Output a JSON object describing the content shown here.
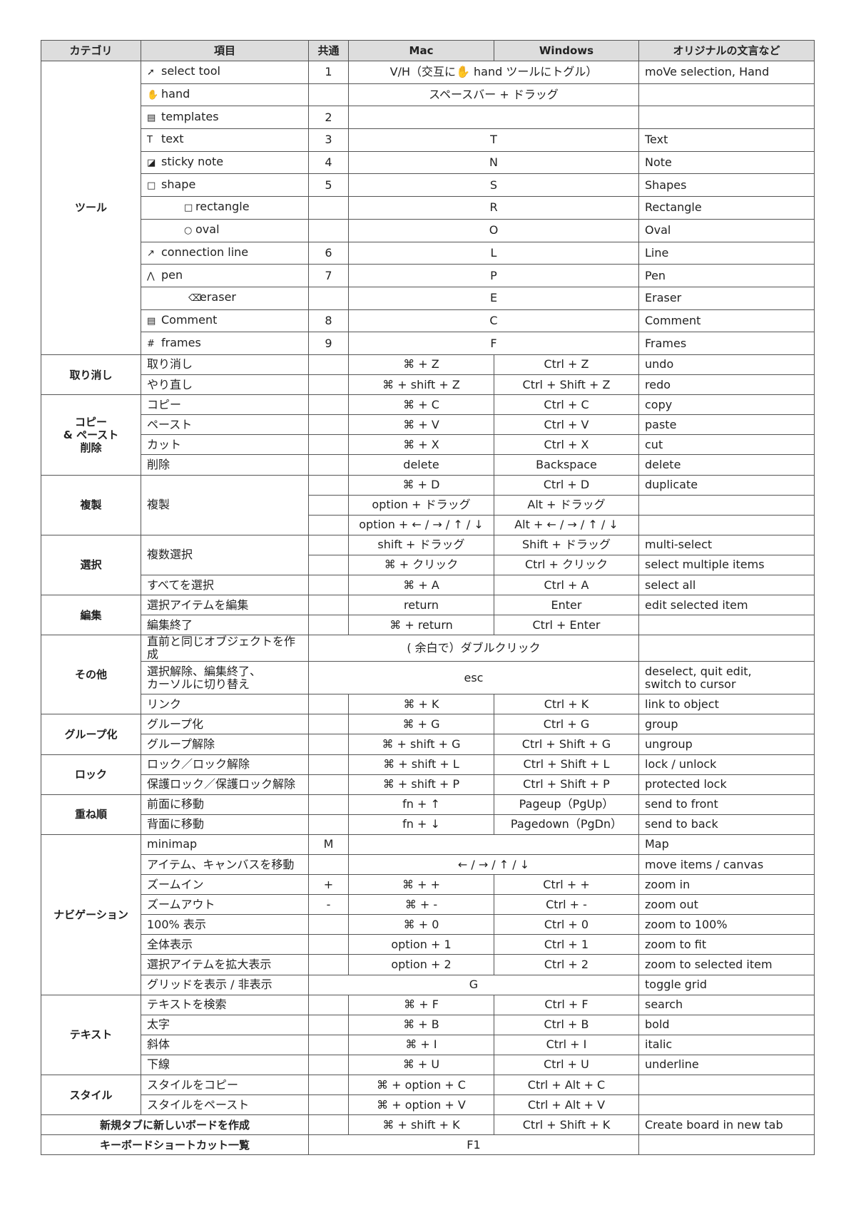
{
  "header": [
    "カテゴリ",
    "項目",
    "共通",
    "Mac",
    "Windows",
    "オリジナルの文言など"
  ],
  "groups": [
    {
      "category": "ツール",
      "items": [
        {
          "item": "select tool",
          "common": "1",
          "both": "V/H（交互に✋ hand ツールにトグル）",
          "original": "moVe selection, Hand"
        },
        {
          "item": "hand",
          "both": "スペースバー + ドラッグ"
        },
        {
          "item": "templates",
          "common": "2"
        },
        {
          "item": "text",
          "common": "3",
          "both": "T",
          "original": "Text"
        },
        {
          "item": "sticky note",
          "common": "4",
          "both": "N",
          "original": "Note"
        },
        {
          "item": "shape",
          "common": "5",
          "both": "S",
          "original": "Shapes"
        },
        {
          "item": "rectangle",
          "both": "R",
          "original": "Rectangle"
        },
        {
          "item": "oval",
          "both": "O",
          "original": "Oval"
        },
        {
          "item": "connection line",
          "common": "6",
          "both": "L",
          "original": "Line"
        },
        {
          "item": "pen",
          "common": "7",
          "both": "P",
          "original": "Pen"
        },
        {
          "item": "eraser",
          "both": "E",
          "original": "Eraser"
        },
        {
          "item": "Comment",
          "common": "8",
          "both": "C",
          "original": "Comment"
        },
        {
          "item": "frames",
          "common": "9",
          "both": "F",
          "original": "Frames"
        }
      ]
    },
    {
      "category": "取り消し",
      "items": [
        {
          "item": "取り消し",
          "mac": "⌘ + Z",
          "windows": "Ctrl + Z",
          "original": "undo"
        },
        {
          "item": "やり直し",
          "mac": "⌘ + shift + Z",
          "windows": "Ctrl + Shift + Z",
          "original": "redo"
        }
      ]
    },
    {
      "category": "コピー\n& ペースト\n削除",
      "items": [
        {
          "item": "コピー",
          "mac": "⌘ + C",
          "windows": "Ctrl + C",
          "original": "copy"
        },
        {
          "item": "ペースト",
          "mac": "⌘ + V",
          "windows": "Ctrl + V",
          "original": "paste"
        },
        {
          "item": "カット",
          "mac": "⌘ + X",
          "windows": "Ctrl + X",
          "original": "cut"
        },
        {
          "item": "削除",
          "mac": "delete",
          "windows": "Backspace",
          "original": "delete"
        }
      ]
    },
    {
      "category": "複製",
      "items": [
        {
          "item": "複製",
          "rows": [
            {
              "mac": "⌘ + D",
              "windows": "Ctrl + D",
              "original": "duplicate"
            },
            {
              "mac": "option + ドラッグ",
              "windows": "Alt + ドラッグ"
            },
            {
              "mac": "option + ← / → / ↑ / ↓",
              "windows": "Alt + ← / → / ↑ / ↓"
            }
          ]
        }
      ]
    },
    {
      "category": "選択",
      "items": [
        {
          "item": "複数選択",
          "rows": [
            {
              "mac": "shift + ドラッグ",
              "windows": "Shift + ドラッグ",
              "original": "multi-select"
            },
            {
              "mac": "⌘ + クリック",
              "windows": "Ctrl + クリック",
              "original": "select multiple items"
            }
          ]
        },
        {
          "item": "すべてを選択",
          "mac": "⌘ + A",
          "windows": "Ctrl + A",
          "original": "select all"
        }
      ]
    },
    {
      "category": "編集",
      "items": [
        {
          "item": "選択アイテムを編集",
          "mac": "return",
          "windows": "Enter",
          "original": "edit selected item"
        },
        {
          "item": "編集終了",
          "mac": "⌘ + return",
          "windows": "Ctrl + Enter"
        }
      ]
    },
    {
      "category": "その他",
      "items": [
        {
          "item": "直前と同じオブジェクトを作成",
          "all": "( 余白で）ダブルクリック"
        },
        {
          "item": "選択解除、編集終了、\nカーソルに切り替え",
          "all": "esc",
          "original": "deselect, quit edit,\nswitch to cursor"
        },
        {
          "item": "リンク",
          "mac": "⌘ + K",
          "windows": "Ctrl + K",
          "original": "link to object"
        }
      ]
    },
    {
      "category": "グループ化",
      "items": [
        {
          "item": "グループ化",
          "mac": "⌘ + G",
          "windows": "Ctrl + G",
          "original": "group"
        },
        {
          "item": "グループ解除",
          "mac": "⌘ + shift + G",
          "windows": "Ctrl + Shift + G",
          "original": "ungroup"
        }
      ]
    },
    {
      "category": "ロック",
      "items": [
        {
          "item": "ロック／ロック解除",
          "mac": "⌘ + shift + L",
          "windows": "Ctrl + Shift + L",
          "original": "lock / unlock"
        },
        {
          "item": "保護ロック／保護ロック解除",
          "mac": "⌘ + shift + P",
          "windows": "Ctrl + Shift + P",
          "original": "protected lock"
        }
      ]
    },
    {
      "category": "重ね順",
      "items": [
        {
          "item": "前面に移動",
          "mac": "fn + ↑",
          "windows": "Pageup（PgUp）",
          "original": "send to front"
        },
        {
          "item": "背面に移動",
          "mac": "fn + ↓",
          "windows": "Pagedown（PgDn）",
          "original": "send to back"
        }
      ]
    },
    {
      "category": "ナビゲーション",
      "items": [
        {
          "item": "minimap",
          "common": "M",
          "original": "Map"
        },
        {
          "item": "アイテム、キャンバスを移動",
          "both": "← / → / ↑ / ↓",
          "original": "move items / canvas"
        },
        {
          "item": "ズームイン",
          "common": "+",
          "mac": "⌘ + +",
          "windows": "Ctrl + +",
          "original": "zoom in"
        },
        {
          "item": "ズームアウト",
          "common": "-",
          "mac": "⌘ + -",
          "windows": "Ctrl + -",
          "original": "zoom out"
        },
        {
          "item": "100% 表示",
          "mac": "⌘ + 0",
          "windows": "Ctrl + 0",
          "original": "zoom to 100%"
        },
        {
          "item": "全体表示",
          "mac": "option + 1",
          "windows": "Ctrl + 1",
          "original": "zoom to fit"
        },
        {
          "item": "選択アイテムを拡大表示",
          "mac": "option +  2",
          "windows": "Ctrl + 2",
          "original": "zoom to selected item"
        },
        {
          "item": "グリッドを表示 / 非表示",
          "all": "G",
          "original": "toggle grid"
        }
      ]
    },
    {
      "category": "テキスト",
      "items": [
        {
          "item": "テキストを検索",
          "mac": "⌘ + F",
          "windows": "Ctrl + F",
          "original": "search"
        },
        {
          "item": "太字",
          "mac": "⌘ + B",
          "windows": "Ctrl + B",
          "original": "bold"
        },
        {
          "item": "斜体",
          "mac": "⌘ + I",
          "windows": "Ctrl + I",
          "original": "italic"
        },
        {
          "item": "下線",
          "mac": "⌘ + U",
          "windows": "Ctrl + U",
          "original": "underline"
        }
      ]
    },
    {
      "category": "スタイル",
      "items": [
        {
          "item": "スタイルをコピー",
          "mac": "⌘ + option + C",
          "windows": "Ctrl + Alt + C"
        },
        {
          "item": "スタイルをペースト",
          "mac": "⌘ + option + V",
          "windows": "Ctrl + Alt + V"
        }
      ]
    },
    {
      "category": "新規タブに新しいボードを作成",
      "items": [
        {
          "mac": "⌘ + shift + K",
          "windows": "Ctrl + Shift + K",
          "original": "Create board in new tab"
        }
      ]
    },
    {
      "category": "キーボードショートカット一覧",
      "items": [
        {
          "all": "F1"
        }
      ]
    }
  ]
}
